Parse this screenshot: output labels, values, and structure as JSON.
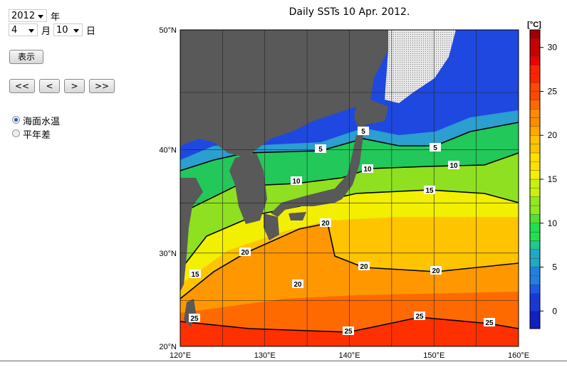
{
  "controls": {
    "year": "2012",
    "year_label": "年",
    "month": "4",
    "month_label": "月",
    "day": "10",
    "day_label": "日",
    "show_button": "表示",
    "nav": [
      "<<",
      "<",
      ">",
      ">>"
    ],
    "radios": [
      {
        "label": "海面水温",
        "checked": true
      },
      {
        "label": "平年差",
        "checked": false
      }
    ]
  },
  "map": {
    "title": "Daily SSTs 10 Apr. 2012.",
    "lat_labels": [
      "50°N",
      "40°N",
      "30°N",
      "20°N"
    ],
    "lon_labels": [
      "120°E",
      "130°E",
      "140°E",
      "150°E",
      "160°E"
    ],
    "contour_labels": [
      "5",
      "5",
      "5",
      "10",
      "10",
      "10",
      "15",
      "15",
      "20",
      "20",
      "20",
      "20",
      "20",
      "25",
      "25",
      "25",
      "25"
    ],
    "colors": {
      "land": "#595959",
      "ice": "#d8d8d8"
    }
  },
  "colorbar": {
    "unit": "[°C]",
    "ticks": [
      "30",
      "25",
      "20",
      "15",
      "10",
      "5",
      "0"
    ],
    "range": [
      -2,
      32
    ]
  }
}
